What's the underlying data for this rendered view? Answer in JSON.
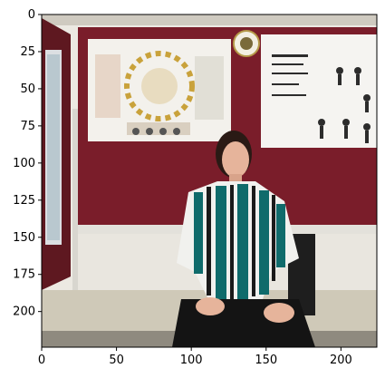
{
  "axes": {
    "x_ticks": [
      "0",
      "50",
      "100",
      "150",
      "200"
    ],
    "y_ticks": [
      "0",
      "25",
      "50",
      "75",
      "100",
      "125",
      "150",
      "175",
      "200"
    ],
    "xlim": [
      0,
      224
    ],
    "ylim": [
      224,
      0
    ]
  },
  "image": {
    "scene": "office-photo"
  },
  "colors": {
    "wall": "#ece9e2",
    "board_maroon": "#7a1d2a",
    "poster_bg": "#f3f1ec",
    "floor": "#cfc9b8",
    "skin": "#e6b49b",
    "hair": "#2a1a15",
    "shirt_teal": "#0f6b6b",
    "trousers": "#141414",
    "axis": "#000000"
  }
}
